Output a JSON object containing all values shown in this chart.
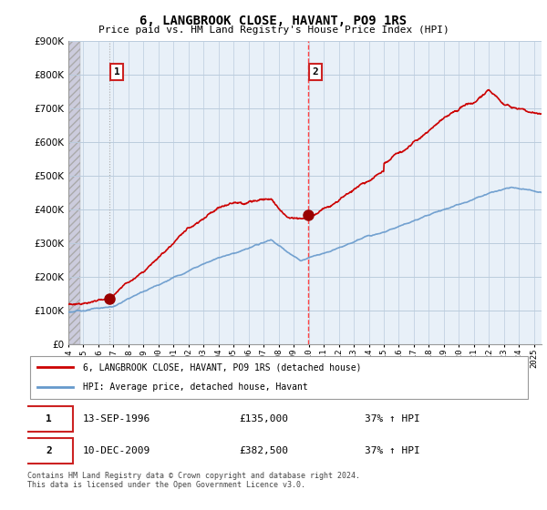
{
  "title": "6, LANGBROOK CLOSE, HAVANT, PO9 1RS",
  "subtitle": "Price paid vs. HM Land Registry's House Price Index (HPI)",
  "ylim": [
    0,
    900000
  ],
  "yticks": [
    0,
    100000,
    200000,
    300000,
    400000,
    500000,
    600000,
    700000,
    800000,
    900000
  ],
  "xlim_start": 1994.0,
  "xlim_end": 2025.5,
  "sale1_date": 1996.71,
  "sale1_price": 135000,
  "sale1_label": "1",
  "sale2_date": 2009.95,
  "sale2_price": 382500,
  "sale2_label": "2",
  "hpi_line_color": "#6699CC",
  "price_line_color": "#CC0000",
  "sale_marker_color": "#990000",
  "vline1_color": "#FF9999",
  "vline2_color": "#FF4444",
  "legend_label1": "6, LANGBROOK CLOSE, HAVANT, PO9 1RS (detached house)",
  "legend_label2": "HPI: Average price, detached house, Havant",
  "annotation1_date": "13-SEP-1996",
  "annotation1_price": "£135,000",
  "annotation1_hpi": "37% ↑ HPI",
  "annotation2_date": "10-DEC-2009",
  "annotation2_price": "£382,500",
  "annotation2_hpi": "37% ↑ HPI",
  "footnote": "Contains HM Land Registry data © Crown copyright and database right 2024.\nThis data is licensed under the Open Government Licence v3.0.",
  "hatch_bg_color": "#DDEEFF",
  "plain_bg_color": "#E8F0F8",
  "grid_color": "#BBCCDD"
}
